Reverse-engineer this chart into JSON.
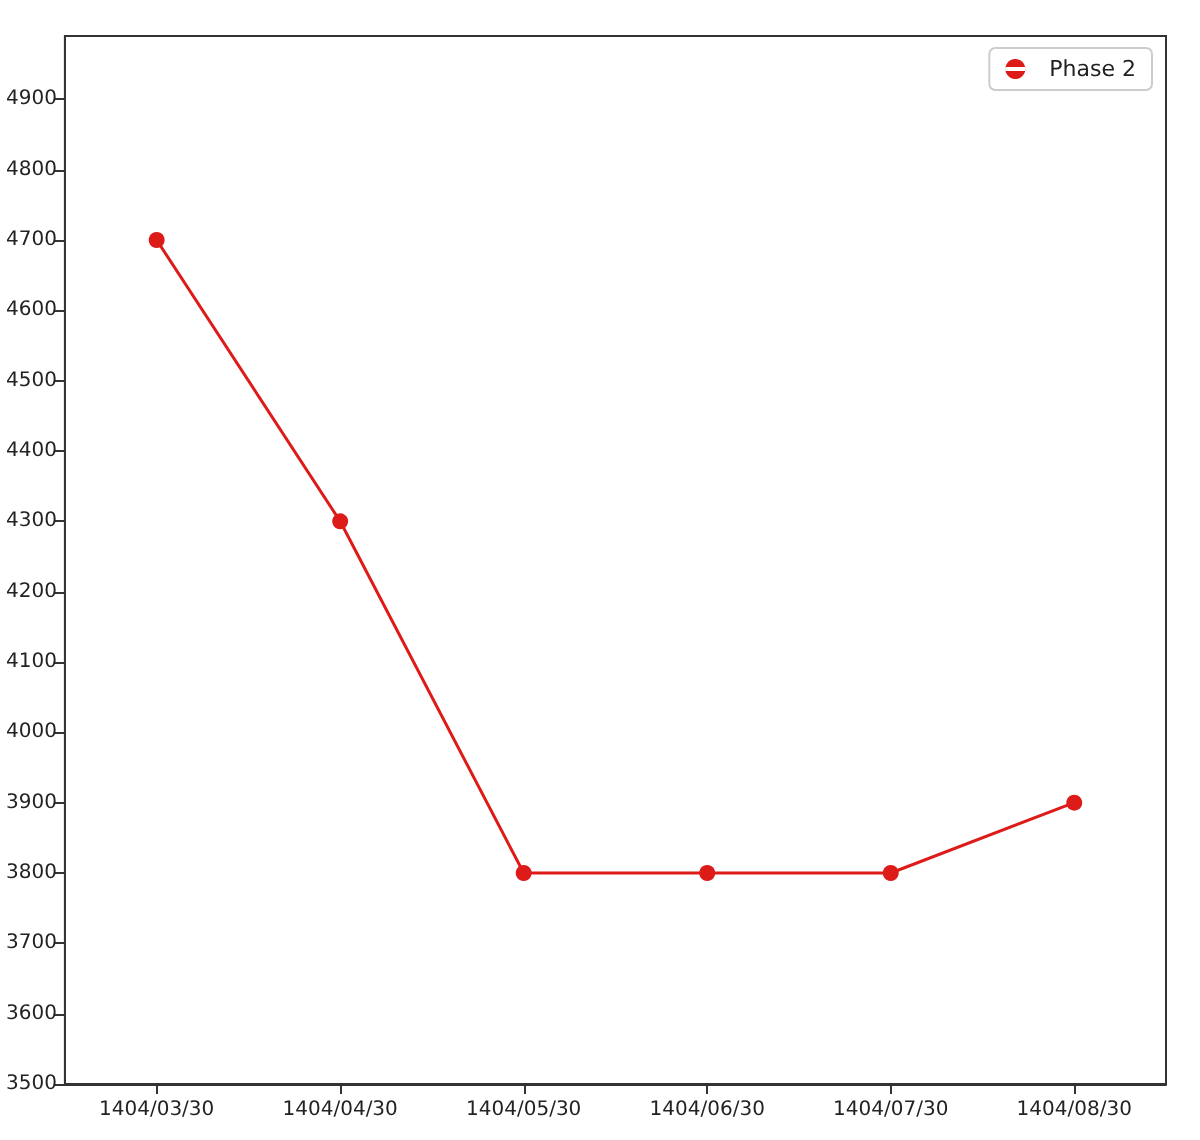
{
  "chart_data": {
    "type": "line",
    "categories": [
      "1404/03/30",
      "1404/04/30",
      "1404/05/30",
      "1404/06/30",
      "1404/07/30",
      "1404/08/30"
    ],
    "series": [
      {
        "name": "Phase 2",
        "color": "#dd1c1a",
        "values": [
          4700,
          4300,
          3800,
          3800,
          3800,
          3900
        ]
      }
    ],
    "ylim": [
      3500,
      4990
    ],
    "yticks": [
      3500,
      3600,
      3700,
      3800,
      3900,
      4000,
      4100,
      4200,
      4300,
      4400,
      4500,
      4600,
      4700,
      4800,
      4900
    ],
    "grid": false,
    "legend": "top right",
    "marker": "circle",
    "line_style": "solid"
  }
}
